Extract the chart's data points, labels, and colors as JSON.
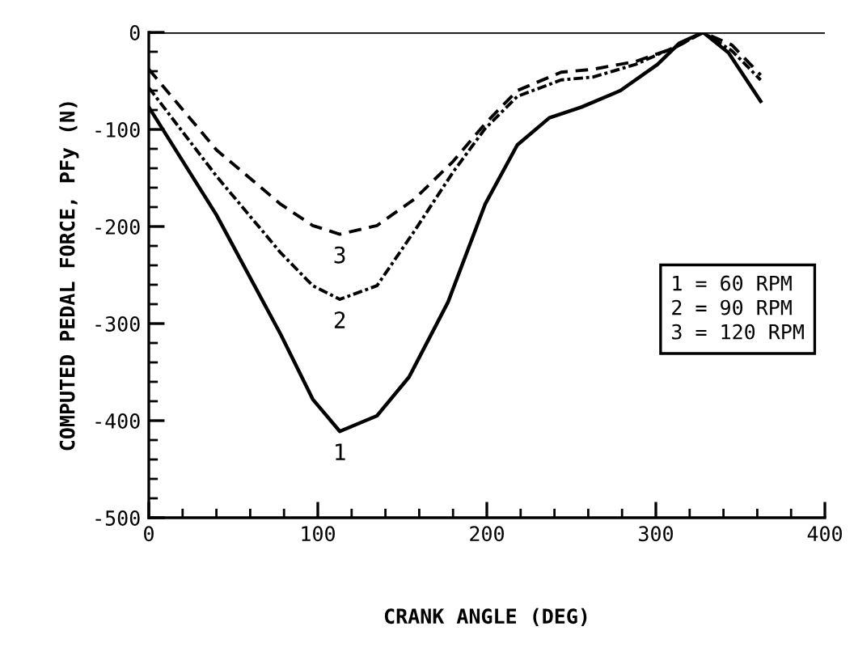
{
  "chart_data": {
    "type": "line",
    "xlabel": "CRANK ANGLE (DEG)",
    "ylabel": "COMPUTED PEDAL FORCE, PFy (N)",
    "xlim": [
      0,
      400
    ],
    "ylim": [
      -500,
      0
    ],
    "xticks": [
      0,
      100,
      200,
      300,
      400
    ],
    "yticks": [
      -500,
      -400,
      -300,
      -200,
      -100,
      0
    ],
    "grid": false,
    "legend": false,
    "marker": "none",
    "ref_lines": [
      {
        "axis": "y",
        "value": 0,
        "color": "#000000"
      }
    ],
    "annotations": [
      "1 = 60 RPM\n2 = 90 RPM\n3 = 120 RPM"
    ],
    "series": [
      {
        "name": "1",
        "color": "#000000",
        "line_style": "solid",
        "x": [
          0,
          40,
          78,
          97,
          113,
          135,
          154,
          177,
          199,
          218,
          237,
          256,
          279,
          301,
          314,
          328,
          343,
          362
        ],
        "values": [
          -77,
          -188,
          -311,
          -378,
          -411,
          -395,
          -355,
          -278,
          -177,
          -116,
          -88,
          -77,
          -60,
          -33,
          -11,
          0,
          -21,
          -71
        ]
      },
      {
        "name": "2",
        "color": "#000000",
        "line_style": "dotted",
        "x": [
          0,
          40,
          78,
          97,
          113,
          135,
          157,
          180,
          199,
          218,
          244,
          263,
          288,
          314,
          328,
          345,
          362
        ],
        "values": [
          -57,
          -148,
          -227,
          -261,
          -275,
          -261,
          -205,
          -144,
          -99,
          -66,
          -49,
          -46,
          -33,
          -13,
          0,
          -19,
          -49
        ]
      },
      {
        "name": "3",
        "color": "#000000",
        "line_style": "dashed",
        "x": [
          0,
          40,
          78,
          97,
          113,
          135,
          157,
          180,
          199,
          218,
          244,
          263,
          288,
          311,
          328,
          345,
          362
        ],
        "values": [
          -38,
          -121,
          -177,
          -199,
          -208,
          -199,
          -172,
          -133,
          -94,
          -60,
          -41,
          -38,
          -30,
          -16,
          0,
          -13,
          -44
        ]
      }
    ]
  }
}
